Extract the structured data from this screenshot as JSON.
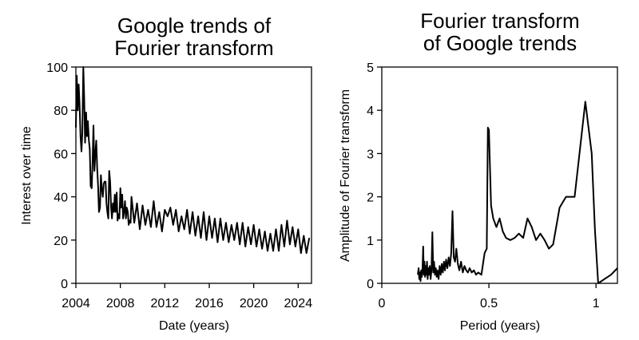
{
  "chart_data": [
    {
      "type": "line",
      "title_lines": [
        "Google trends of",
        "Fourier transform"
      ],
      "xlabel": "Date (years)",
      "ylabel": "Interest over time",
      "xlim": [
        2004,
        2025.2
      ],
      "ylim": [
        0,
        100
      ],
      "xticks": [
        2004,
        2008,
        2012,
        2016,
        2020,
        2024
      ],
      "yticks": [
        0,
        20,
        40,
        60,
        80,
        100
      ],
      "line_color": "#000000",
      "series": [
        {
          "x": [
            2004.0,
            2004.08,
            2004.17,
            2004.25,
            2004.33,
            2004.42,
            2004.5,
            2004.58,
            2004.67,
            2004.75,
            2004.83,
            2004.92,
            2005.0,
            2005.08,
            2005.17,
            2005.25,
            2005.33,
            2005.42,
            2005.5,
            2005.58,
            2005.67,
            2005.75,
            2005.83,
            2005.92,
            2006.0,
            2006.08,
            2006.17,
            2006.25,
            2006.33,
            2006.42,
            2006.5,
            2006.58,
            2006.67,
            2006.75,
            2006.83,
            2006.92,
            2007.0,
            2007.08,
            2007.17,
            2007.25,
            2007.33,
            2007.42,
            2007.5,
            2007.58,
            2007.67,
            2007.75,
            2007.83,
            2007.92,
            2008.0,
            2008.08,
            2008.17,
            2008.25,
            2008.33,
            2008.42,
            2008.5,
            2008.58,
            2008.67,
            2008.75,
            2008.83,
            2008.92,
            2009.0,
            2009.25,
            2009.5,
            2009.75,
            2010.0,
            2010.25,
            2010.5,
            2010.75,
            2011.0,
            2011.25,
            2011.5,
            2011.75,
            2012.0,
            2012.25,
            2012.5,
            2012.75,
            2013.0,
            2013.25,
            2013.5,
            2013.75,
            2014.0,
            2014.25,
            2014.5,
            2014.75,
            2015.0,
            2015.25,
            2015.5,
            2015.75,
            2016.0,
            2016.25,
            2016.5,
            2016.75,
            2017.0,
            2017.25,
            2017.5,
            2017.75,
            2018.0,
            2018.25,
            2018.5,
            2018.75,
            2019.0,
            2019.25,
            2019.5,
            2019.75,
            2020.0,
            2020.25,
            2020.5,
            2020.75,
            2021.0,
            2021.25,
            2021.5,
            2021.75,
            2022.0,
            2022.25,
            2022.5,
            2022.75,
            2023.0,
            2023.25,
            2023.5,
            2023.75,
            2024.0,
            2024.25,
            2024.5,
            2024.75,
            2025.0
          ],
          "y": [
            72,
            96,
            80,
            92,
            83,
            68,
            61,
            70,
            100,
            86,
            65,
            79,
            68,
            75,
            66,
            62,
            45,
            44,
            56,
            73,
            52,
            60,
            66,
            53,
            45,
            33,
            35,
            50,
            44,
            40,
            46,
            47,
            47,
            37,
            33,
            30,
            52,
            47,
            35,
            30,
            37,
            33,
            41,
            33,
            42,
            29,
            32,
            30,
            44,
            35,
            41,
            30,
            33,
            38,
            30,
            35,
            33,
            27,
            29,
            28,
            40,
            28,
            37,
            25,
            36,
            27,
            34,
            26,
            38,
            26,
            33,
            24,
            34,
            31,
            35,
            27,
            34,
            24,
            31,
            25,
            34,
            23,
            33,
            22,
            31,
            21,
            33,
            20,
            31,
            21,
            30,
            19,
            30,
            20,
            28,
            19,
            27,
            20,
            28,
            18,
            28,
            17,
            26,
            18,
            27,
            17,
            25,
            16,
            24,
            15,
            23,
            15,
            25,
            15,
            27,
            17,
            29,
            18,
            26,
            17,
            25,
            14,
            22,
            14,
            21
          ]
        }
      ]
    },
    {
      "type": "line",
      "title_lines": [
        "Fourier transform",
        "of Google trends"
      ],
      "xlabel": "Period (years)",
      "ylabel": "Amplitude of Fourier transform",
      "xlim": [
        0,
        1.1
      ],
      "ylim": [
        0,
        5
      ],
      "xticks": [
        0,
        0.5,
        1
      ],
      "xtick_labels": [
        "0",
        "0.5",
        "1"
      ],
      "yticks": [
        0,
        1,
        2,
        3,
        4,
        5
      ],
      "line_color": "#000000",
      "series": [
        {
          "x": [
            0.168,
            0.172,
            0.175,
            0.178,
            0.181,
            0.184,
            0.187,
            0.19,
            0.193,
            0.196,
            0.199,
            0.202,
            0.205,
            0.208,
            0.211,
            0.214,
            0.217,
            0.22,
            0.224,
            0.228,
            0.232,
            0.236,
            0.24,
            0.244,
            0.248,
            0.252,
            0.256,
            0.26,
            0.265,
            0.27,
            0.275,
            0.28,
            0.285,
            0.29,
            0.295,
            0.3,
            0.306,
            0.312,
            0.318,
            0.324,
            0.33,
            0.336,
            0.342,
            0.348,
            0.355,
            0.362,
            0.37,
            0.378,
            0.386,
            0.394,
            0.402,
            0.41,
            0.42,
            0.43,
            0.44,
            0.45,
            0.465,
            0.48,
            0.49,
            0.495,
            0.5,
            0.51,
            0.52,
            0.535,
            0.55,
            0.565,
            0.58,
            0.6,
            0.62,
            0.64,
            0.66,
            0.68,
            0.7,
            0.72,
            0.74,
            0.76,
            0.78,
            0.8,
            0.83,
            0.86,
            0.9,
            0.95,
            0.98,
            0.995,
            1.01,
            1.04,
            1.07,
            1.1
          ],
          "y": [
            0.2,
            0.35,
            0.1,
            0.25,
            0.05,
            0.3,
            0.15,
            0.35,
            0.85,
            0.2,
            0.5,
            0.15,
            0.4,
            0.2,
            0.5,
            0.1,
            0.35,
            0.2,
            0.4,
            0.1,
            0.3,
            1.18,
            0.25,
            0.5,
            0.2,
            0.35,
            0.15,
            0.3,
            0.1,
            0.4,
            0.2,
            0.45,
            0.25,
            0.5,
            0.3,
            0.55,
            0.35,
            0.6,
            0.4,
            0.7,
            1.67,
            0.6,
            0.5,
            0.8,
            0.45,
            0.3,
            0.5,
            0.25,
            0.4,
            0.3,
            0.25,
            0.35,
            0.25,
            0.3,
            0.2,
            0.25,
            0.2,
            0.7,
            0.8,
            3.6,
            3.55,
            1.8,
            1.5,
            1.3,
            1.5,
            1.2,
            1.05,
            1.0,
            1.05,
            1.15,
            1.05,
            1.5,
            1.3,
            1.0,
            1.15,
            1.0,
            0.8,
            0.9,
            1.75,
            2.0,
            2.0,
            4.2,
            3.0,
            1.25,
            0.0,
            0.1,
            0.2,
            0.35
          ]
        }
      ]
    }
  ]
}
